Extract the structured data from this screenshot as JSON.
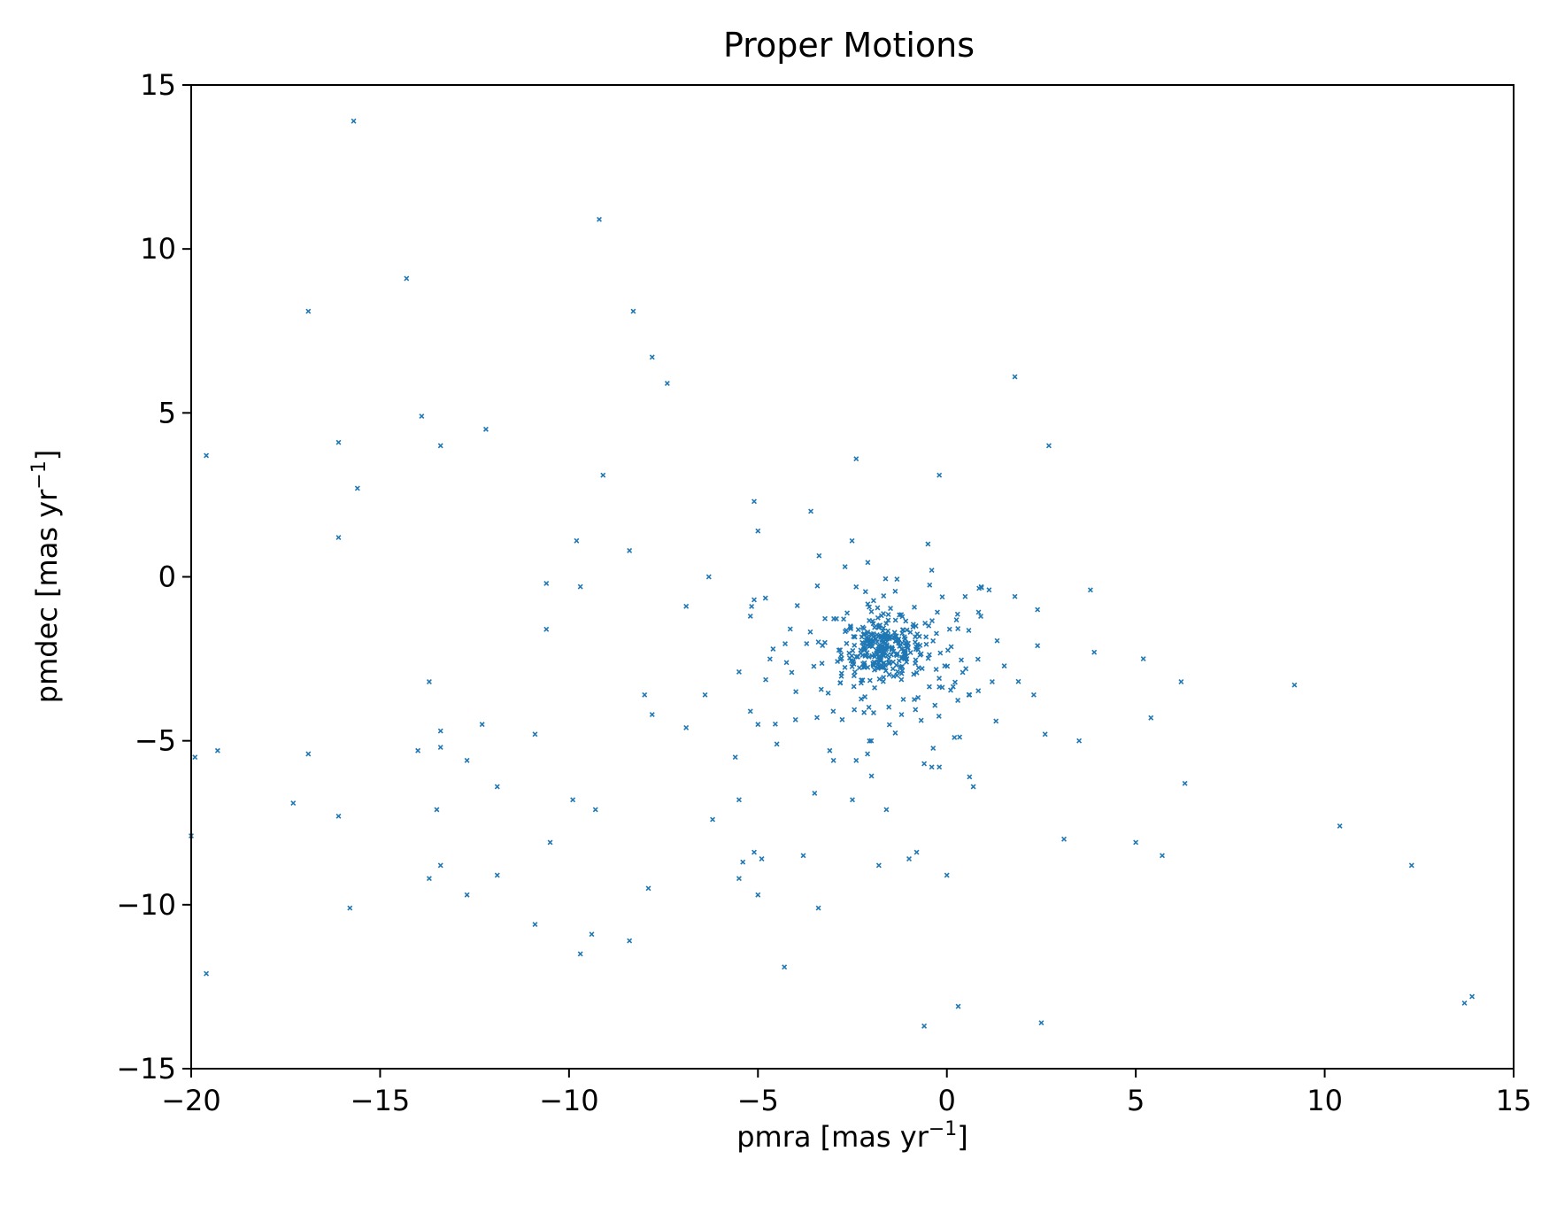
{
  "chart_data": {
    "type": "scatter",
    "title": "Proper Motions",
    "xlabel": "pmra [mas yr",
    "ylabel": "pmdec [mas yr",
    "unit_exponent": "−1",
    "label_close": "]",
    "xlim": [
      -20,
      15
    ],
    "ylim": [
      -15,
      15
    ],
    "xticks": [
      -20,
      -15,
      -10,
      -5,
      0,
      5,
      10,
      15
    ],
    "yticks": [
      -15,
      -10,
      -5,
      0,
      5,
      10,
      15
    ],
    "xtick_labels": [
      "−20",
      "−15",
      "−10",
      "−5",
      "0",
      "5",
      "10",
      "15"
    ],
    "ytick_labels": [
      "−15",
      "−10",
      "−5",
      "0",
      "5",
      "10",
      "15"
    ],
    "grid": false,
    "marker": "x",
    "color": "#1f77b4",
    "core_cluster": {
      "center": [
        -1.7,
        -2.2
      ],
      "count": 260,
      "spread": [
        0.55,
        0.45
      ]
    },
    "halo_cluster": {
      "center": [
        -1.5,
        -2.4
      ],
      "count": 140,
      "spread": [
        1.6,
        1.4
      ]
    },
    "points": [
      [
        -15.7,
        13.9
      ],
      [
        -9.2,
        10.9
      ],
      [
        -14.3,
        9.1
      ],
      [
        -16.9,
        8.1
      ],
      [
        -8.3,
        8.1
      ],
      [
        -7.8,
        6.7
      ],
      [
        -7.4,
        5.9
      ],
      [
        -13.9,
        4.9
      ],
      [
        -12.2,
        4.5
      ],
      [
        -16.1,
        4.1
      ],
      [
        -13.4,
        4.0
      ],
      [
        -19.6,
        3.7
      ],
      [
        -15.6,
        2.7
      ],
      [
        -9.1,
        3.1
      ],
      [
        -16.1,
        1.2
      ],
      [
        -9.8,
        1.1
      ],
      [
        -8.4,
        0.8
      ],
      [
        -10.6,
        -0.2
      ],
      [
        -9.7,
        -0.3
      ],
      [
        -10.6,
        -1.6
      ],
      [
        -13.7,
        -3.2
      ],
      [
        -13.4,
        -4.7
      ],
      [
        -12.3,
        -4.5
      ],
      [
        -10.9,
        -4.8
      ],
      [
        -14.0,
        -5.3
      ],
      [
        -13.4,
        -5.2
      ],
      [
        -12.7,
        -5.6
      ],
      [
        -16.9,
        -5.4
      ],
      [
        -19.9,
        -5.5
      ],
      [
        -19.3,
        -5.3
      ],
      [
        -17.3,
        -6.9
      ],
      [
        -16.1,
        -7.3
      ],
      [
        -13.5,
        -7.1
      ],
      [
        -11.9,
        -6.4
      ],
      [
        -9.9,
        -6.8
      ],
      [
        -9.3,
        -7.1
      ],
      [
        -10.5,
        -8.1
      ],
      [
        -11.9,
        -9.1
      ],
      [
        -13.4,
        -8.8
      ],
      [
        -13.7,
        -9.2
      ],
      [
        -12.7,
        -9.7
      ],
      [
        -15.8,
        -10.1
      ],
      [
        -20.0,
        -7.9
      ],
      [
        -19.6,
        -12.1
      ],
      [
        -10.9,
        -10.6
      ],
      [
        -9.4,
        -10.9
      ],
      [
        -9.7,
        -11.5
      ],
      [
        -8.4,
        -11.1
      ],
      [
        -7.9,
        -9.5
      ],
      [
        -8.0,
        -3.6
      ],
      [
        -7.8,
        -4.2
      ],
      [
        -6.9,
        -0.9
      ],
      [
        -6.3,
        0.0
      ],
      [
        -6.4,
        -3.6
      ],
      [
        -6.9,
        -4.6
      ],
      [
        -6.2,
        -7.4
      ],
      [
        -5.1,
        2.3
      ],
      [
        -5.0,
        1.4
      ],
      [
        -3.6,
        2.0
      ],
      [
        -5.1,
        -0.7
      ],
      [
        -5.2,
        -1.2
      ],
      [
        -4.6,
        -2.2
      ],
      [
        -5.5,
        -2.9
      ],
      [
        -5.2,
        -4.1
      ],
      [
        -5.0,
        -4.5
      ],
      [
        -4.5,
        -5.1
      ],
      [
        -5.6,
        -5.5
      ],
      [
        -5.5,
        -6.8
      ],
      [
        -5.1,
        -8.4
      ],
      [
        -5.4,
        -8.7
      ],
      [
        -4.9,
        -8.6
      ],
      [
        -5.5,
        -9.2
      ],
      [
        -5.0,
        -9.7
      ],
      [
        -3.8,
        -8.5
      ],
      [
        -3.4,
        -10.1
      ],
      [
        -4.3,
        -11.9
      ],
      [
        -3.5,
        -6.6
      ],
      [
        -2.5,
        -6.8
      ],
      [
        -3.1,
        -5.3
      ],
      [
        -3.0,
        -5.6
      ],
      [
        -2.4,
        -5.6
      ],
      [
        -2.1,
        -5.4
      ],
      [
        -2.0,
        -5.0
      ],
      [
        -1.8,
        -8.8
      ],
      [
        -1.6,
        -7.1
      ],
      [
        -1.0,
        -8.6
      ],
      [
        -0.8,
        -8.4
      ],
      [
        -2.4,
        3.6
      ],
      [
        -0.2,
        3.1
      ],
      [
        -0.5,
        1.0
      ],
      [
        -0.4,
        0.2
      ],
      [
        -1.2,
        -4.2
      ],
      [
        -0.4,
        -5.8
      ],
      [
        -0.6,
        -5.7
      ],
      [
        -0.2,
        -5.8
      ],
      [
        0.0,
        -9.1
      ],
      [
        0.3,
        -13.1
      ],
      [
        -0.6,
        -13.7
      ],
      [
        0.6,
        -6.1
      ],
      [
        0.7,
        -6.4
      ],
      [
        0.2,
        -4.9
      ],
      [
        0.6,
        -3.6
      ],
      [
        1.2,
        -3.2
      ],
      [
        1.3,
        -4.4
      ],
      [
        1.8,
        -0.6
      ],
      [
        1.8,
        6.1
      ],
      [
        2.7,
        4.0
      ],
      [
        2.4,
        -1.0
      ],
      [
        2.4,
        -2.1
      ],
      [
        2.3,
        -3.6
      ],
      [
        2.6,
        -4.8
      ],
      [
        3.5,
        -5.0
      ],
      [
        3.8,
        -0.4
      ],
      [
        3.9,
        -2.3
      ],
      [
        5.2,
        -2.5
      ],
      [
        5.4,
        -4.3
      ],
      [
        6.2,
        -3.2
      ],
      [
        6.3,
        -6.3
      ],
      [
        5.0,
        -8.1
      ],
      [
        5.7,
        -8.5
      ],
      [
        3.1,
        -8.0
      ],
      [
        2.5,
        -13.6
      ],
      [
        9.2,
        -3.3
      ],
      [
        10.4,
        -7.6
      ],
      [
        12.3,
        -8.8
      ],
      [
        13.7,
        -13.0
      ],
      [
        13.9,
        -12.8
      ]
    ]
  }
}
